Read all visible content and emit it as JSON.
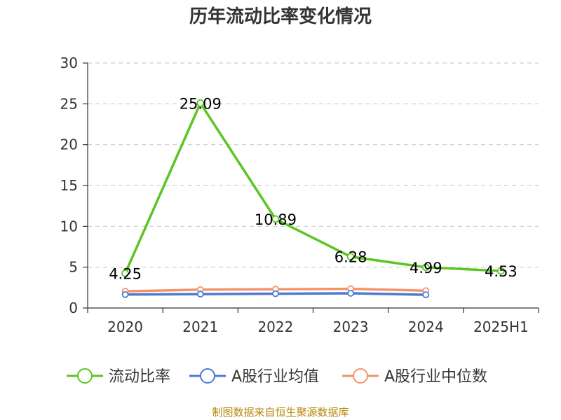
{
  "chart_data": {
    "type": "line",
    "title": "历年流动比率变化情况",
    "categories": [
      "2020",
      "2021",
      "2022",
      "2023",
      "2024",
      "2025H1"
    ],
    "y_ticks": [
      "0",
      "5",
      "10",
      "15",
      "20",
      "25",
      "30"
    ],
    "ylim": [
      0,
      30
    ],
    "grid": true,
    "legend_position": "bottom",
    "series": [
      {
        "name": "流动比率",
        "color": "#5cc523",
        "values": [
          4.25,
          25.09,
          10.89,
          6.28,
          4.99,
          4.53
        ],
        "data_labels": [
          "4.25",
          "25.09",
          "10.89",
          "6.28",
          "4.99",
          "4.53"
        ]
      },
      {
        "name": "A股行业均值",
        "color": "#4a7bd4",
        "values": [
          1.65,
          1.7,
          1.75,
          1.8,
          1.62,
          null
        ]
      },
      {
        "name": "A股行业中位数",
        "color": "#f4936a",
        "values": [
          2.05,
          2.25,
          2.3,
          2.35,
          2.12,
          null
        ]
      }
    ]
  },
  "footer": {
    "source": "制图数据来自恒生聚源数据库"
  }
}
